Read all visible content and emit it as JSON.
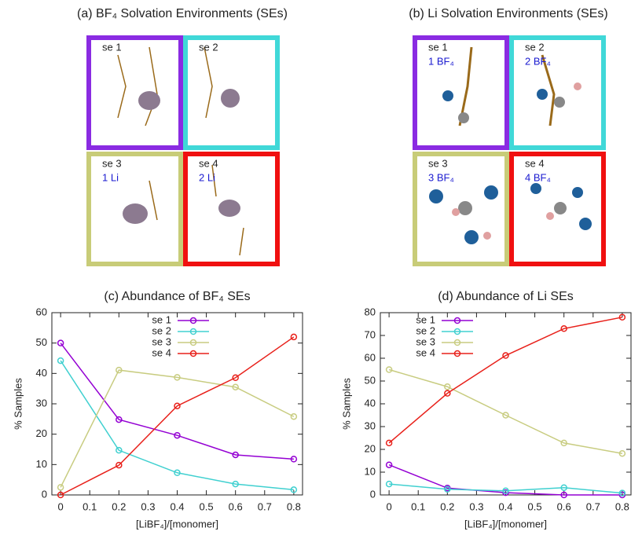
{
  "figures": [
    {
      "title": "(a) BF₄ Solvation Environments (SEs)",
      "boxes": [
        {
          "label": "se 1",
          "color": "#8a2be2"
        },
        {
          "label": "se 2",
          "color": "#40d8d8"
        },
        {
          "label": "se 3",
          "sublabel": "1 Li",
          "color": "#c8cc78"
        },
        {
          "label": "se 4",
          "sublabel": "2 Li",
          "color": "#f01010"
        }
      ]
    },
    {
      "title": "(b) Li Solvation Environments (SEs)",
      "boxes": [
        {
          "label": "se 1",
          "sublabel": "1 BF₄",
          "color": "#8a2be2"
        },
        {
          "label": "se 2",
          "sublabel": "2 BF₄",
          "color": "#40d8d8"
        },
        {
          "label": "se 3",
          "sublabel": "3 BF₄",
          "color": "#c8cc78"
        },
        {
          "label": "se 4",
          "sublabel": "4 BF₄",
          "color": "#f01010"
        }
      ]
    }
  ],
  "chart_data": [
    {
      "type": "line",
      "title": "(c) Abundance of BF₄ SEs",
      "xlabel": "[LiBF₄]/[monomer]",
      "ylabel": "% Samples",
      "x": [
        0,
        0.2,
        0.4,
        0.6,
        0.8
      ],
      "xlim": [
        -0.03,
        0.83
      ],
      "xticks": [
        0,
        0.1,
        0.2,
        0.3,
        0.4,
        0.5,
        0.6,
        0.7,
        0.8
      ],
      "ylim": [
        0,
        60
      ],
      "yticks": [
        0,
        10,
        20,
        30,
        40,
        50,
        60
      ],
      "legend": "top-right",
      "series": [
        {
          "name": "se 1",
          "color": "#9400d3",
          "values": [
            50,
            24.8,
            19.6,
            13.2,
            11.8
          ]
        },
        {
          "name": "se 2",
          "color": "#40d0d0",
          "values": [
            44.2,
            14.7,
            7.3,
            3.6,
            1.7
          ]
        },
        {
          "name": "se 3",
          "color": "#c8cc80",
          "values": [
            2.5,
            41.1,
            38.7,
            35.5,
            25.8
          ]
        },
        {
          "name": "se 4",
          "color": "#e8201a",
          "values": [
            0,
            9.8,
            29.3,
            38.6,
            52
          ]
        }
      ]
    },
    {
      "type": "line",
      "title": "(d) Abundance of Li SEs",
      "xlabel": "[LiBF₄]/[monomer]",
      "ylabel": "% Samples",
      "x": [
        0,
        0.2,
        0.4,
        0.6,
        0.8
      ],
      "xlim": [
        -0.03,
        0.83
      ],
      "xticks": [
        0,
        0.1,
        0.2,
        0.3,
        0.4,
        0.5,
        0.6,
        0.7,
        0.8
      ],
      "ylim": [
        0,
        80
      ],
      "yticks": [
        0,
        10,
        20,
        30,
        40,
        50,
        60,
        70,
        80
      ],
      "legend": "top-left",
      "series": [
        {
          "name": "se 1",
          "color": "#9400d3",
          "values": [
            13.2,
            3,
            1,
            0,
            0
          ]
        },
        {
          "name": "se 2",
          "color": "#40d0d0",
          "values": [
            4.8,
            2.5,
            1.8,
            3.2,
            0.8
          ]
        },
        {
          "name": "se 3",
          "color": "#c8cc80",
          "values": [
            55,
            47.5,
            35,
            22.8,
            18.2
          ]
        },
        {
          "name": "se 4",
          "color": "#e8201a",
          "values": [
            22.8,
            44.6,
            61.2,
            73,
            78
          ]
        }
      ]
    }
  ]
}
